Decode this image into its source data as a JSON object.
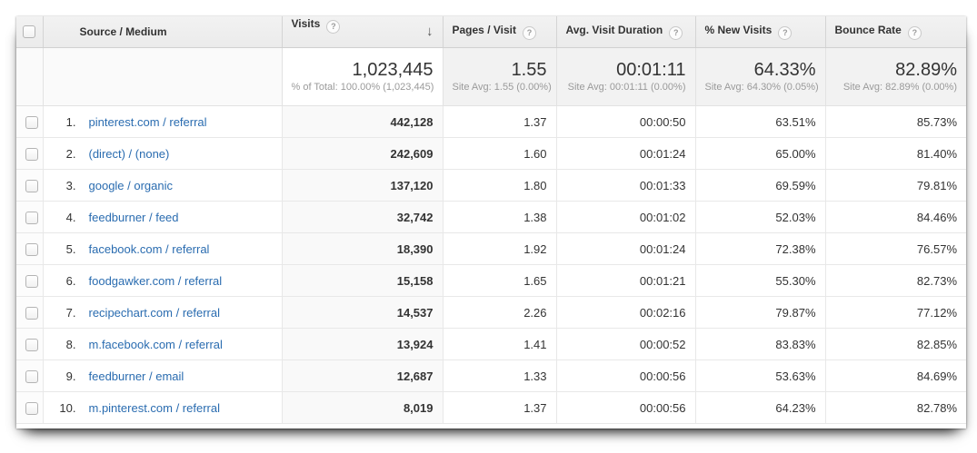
{
  "colors": {
    "link_blue": "#2a6cb0",
    "header_bg": "#efefef",
    "summary_bg": "#f2f2f2",
    "sorted_column_tint": "#f9f9f9",
    "text_primary": "#333333",
    "text_secondary": "#9a9a9a"
  },
  "icons": {
    "help": "?",
    "sort_descending": "↓"
  },
  "table": {
    "columns": [
      {
        "label": "Source / Medium",
        "has_help": false,
        "sorted": false
      },
      {
        "label": "Visits",
        "has_help": true,
        "sorted": "descending"
      },
      {
        "label": "Pages / Visit",
        "has_help": true,
        "sorted": false
      },
      {
        "label": "Avg. Visit Duration",
        "has_help": true,
        "sorted": false
      },
      {
        "label": "% New Visits",
        "has_help": true,
        "sorted": false
      },
      {
        "label": "Bounce Rate",
        "has_help": true,
        "sorted": false
      }
    ],
    "summary": {
      "visits": "1,023,445",
      "visits_note": "% of Total: 100.00% (1,023,445)",
      "pages_per_visit": "1.55",
      "pages_per_visit_note": "Site Avg: 1.55 (0.00%)",
      "avg_visit_duration": "00:01:11",
      "avg_visit_duration_note": "Site Avg: 00:01:11 (0.00%)",
      "pct_new_visits": "64.33%",
      "pct_new_visits_note": "Site Avg: 64.30% (0.05%)",
      "bounce_rate": "82.89%",
      "bounce_rate_note": "Site Avg: 82.89% (0.00%)"
    },
    "rows": [
      {
        "rank": "1.",
        "source": "pinterest.com / referral",
        "visits": "442,128",
        "pages_per_visit": "1.37",
        "avg_visit_duration": "00:00:50",
        "pct_new_visits": "63.51%",
        "bounce_rate": "85.73%"
      },
      {
        "rank": "2.",
        "source": "(direct) / (none)",
        "visits": "242,609",
        "pages_per_visit": "1.60",
        "avg_visit_duration": "00:01:24",
        "pct_new_visits": "65.00%",
        "bounce_rate": "81.40%"
      },
      {
        "rank": "3.",
        "source": "google / organic",
        "visits": "137,120",
        "pages_per_visit": "1.80",
        "avg_visit_duration": "00:01:33",
        "pct_new_visits": "69.59%",
        "bounce_rate": "79.81%"
      },
      {
        "rank": "4.",
        "source": "feedburner / feed",
        "visits": "32,742",
        "pages_per_visit": "1.38",
        "avg_visit_duration": "00:01:02",
        "pct_new_visits": "52.03%",
        "bounce_rate": "84.46%"
      },
      {
        "rank": "5.",
        "source": "facebook.com / referral",
        "visits": "18,390",
        "pages_per_visit": "1.92",
        "avg_visit_duration": "00:01:24",
        "pct_new_visits": "72.38%",
        "bounce_rate": "76.57%"
      },
      {
        "rank": "6.",
        "source": "foodgawker.com / referral",
        "visits": "15,158",
        "pages_per_visit": "1.65",
        "avg_visit_duration": "00:01:21",
        "pct_new_visits": "55.30%",
        "bounce_rate": "82.73%"
      },
      {
        "rank": "7.",
        "source": "recipechart.com / referral",
        "visits": "14,537",
        "pages_per_visit": "2.26",
        "avg_visit_duration": "00:02:16",
        "pct_new_visits": "79.87%",
        "bounce_rate": "77.12%"
      },
      {
        "rank": "8.",
        "source": "m.facebook.com / referral",
        "visits": "13,924",
        "pages_per_visit": "1.41",
        "avg_visit_duration": "00:00:52",
        "pct_new_visits": "83.83%",
        "bounce_rate": "82.85%"
      },
      {
        "rank": "9.",
        "source": "feedburner / email",
        "visits": "12,687",
        "pages_per_visit": "1.33",
        "avg_visit_duration": "00:00:56",
        "pct_new_visits": "53.63%",
        "bounce_rate": "84.69%"
      },
      {
        "rank": "10.",
        "source": "m.pinterest.com / referral",
        "visits": "8,019",
        "pages_per_visit": "1.37",
        "avg_visit_duration": "00:00:56",
        "pct_new_visits": "64.23%",
        "bounce_rate": "82.78%"
      }
    ]
  }
}
